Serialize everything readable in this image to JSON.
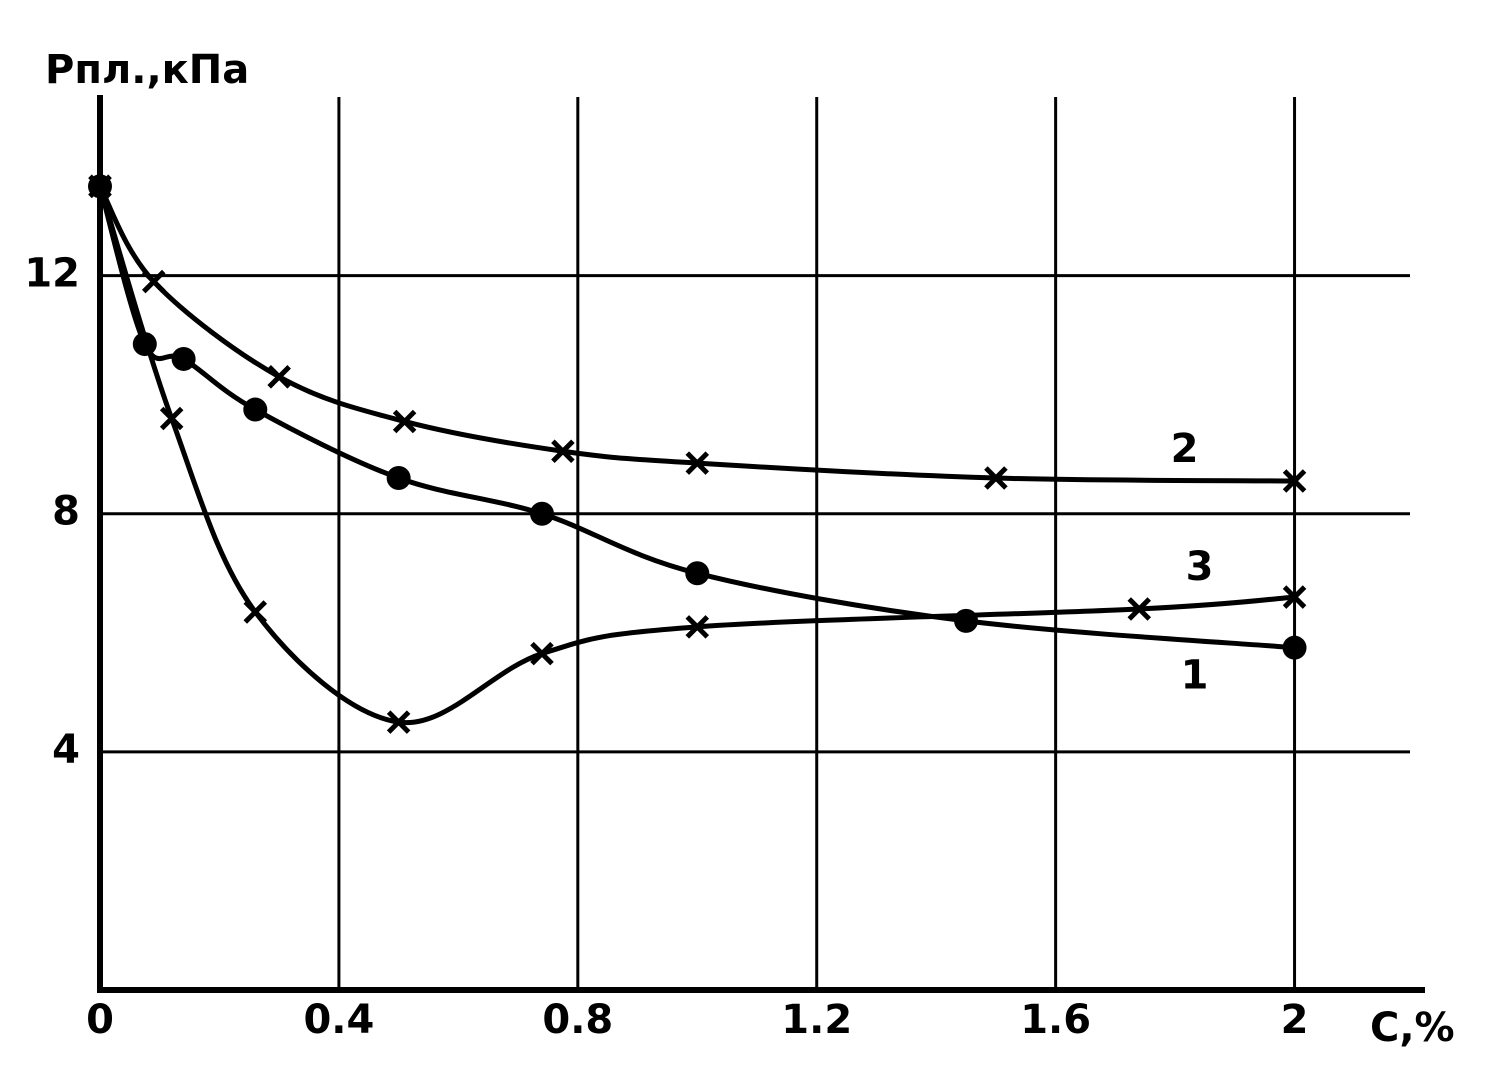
{
  "chart_data": {
    "type": "line",
    "y_label": "Pпл.,кПа",
    "x_label": "C,%",
    "xlim": [
      0,
      2.2
    ],
    "ylim": [
      0,
      15
    ],
    "xticks": [
      0,
      0.4,
      0.8,
      1.2,
      1.6,
      2
    ],
    "yticks": [
      4,
      8,
      12
    ],
    "grid": true,
    "series": [
      {
        "name": "1",
        "color": "#000000",
        "marker": "circle",
        "x": [
          0,
          0.075,
          0.14,
          0.26,
          0.5,
          0.74,
          1.0,
          1.45,
          2.0
        ],
        "values": [
          13.5,
          10.85,
          10.6,
          9.75,
          8.6,
          8.0,
          7.0,
          6.2,
          5.75
        ]
      },
      {
        "name": "2",
        "color": "#000000",
        "marker": "cross",
        "x": [
          0,
          0.09,
          0.3,
          0.51,
          0.775,
          1.0,
          1.5,
          2.0
        ],
        "values": [
          13.5,
          11.9,
          10.3,
          9.55,
          9.05,
          8.85,
          8.6,
          8.55
        ]
      },
      {
        "name": "3",
        "color": "#000000",
        "marker": "cross",
        "x": [
          0,
          0.12,
          0.26,
          0.5,
          0.74,
          1.0,
          1.74,
          2.0
        ],
        "values": [
          13.5,
          9.6,
          6.35,
          4.5,
          5.65,
          6.1,
          6.4,
          6.6
        ]
      }
    ]
  }
}
